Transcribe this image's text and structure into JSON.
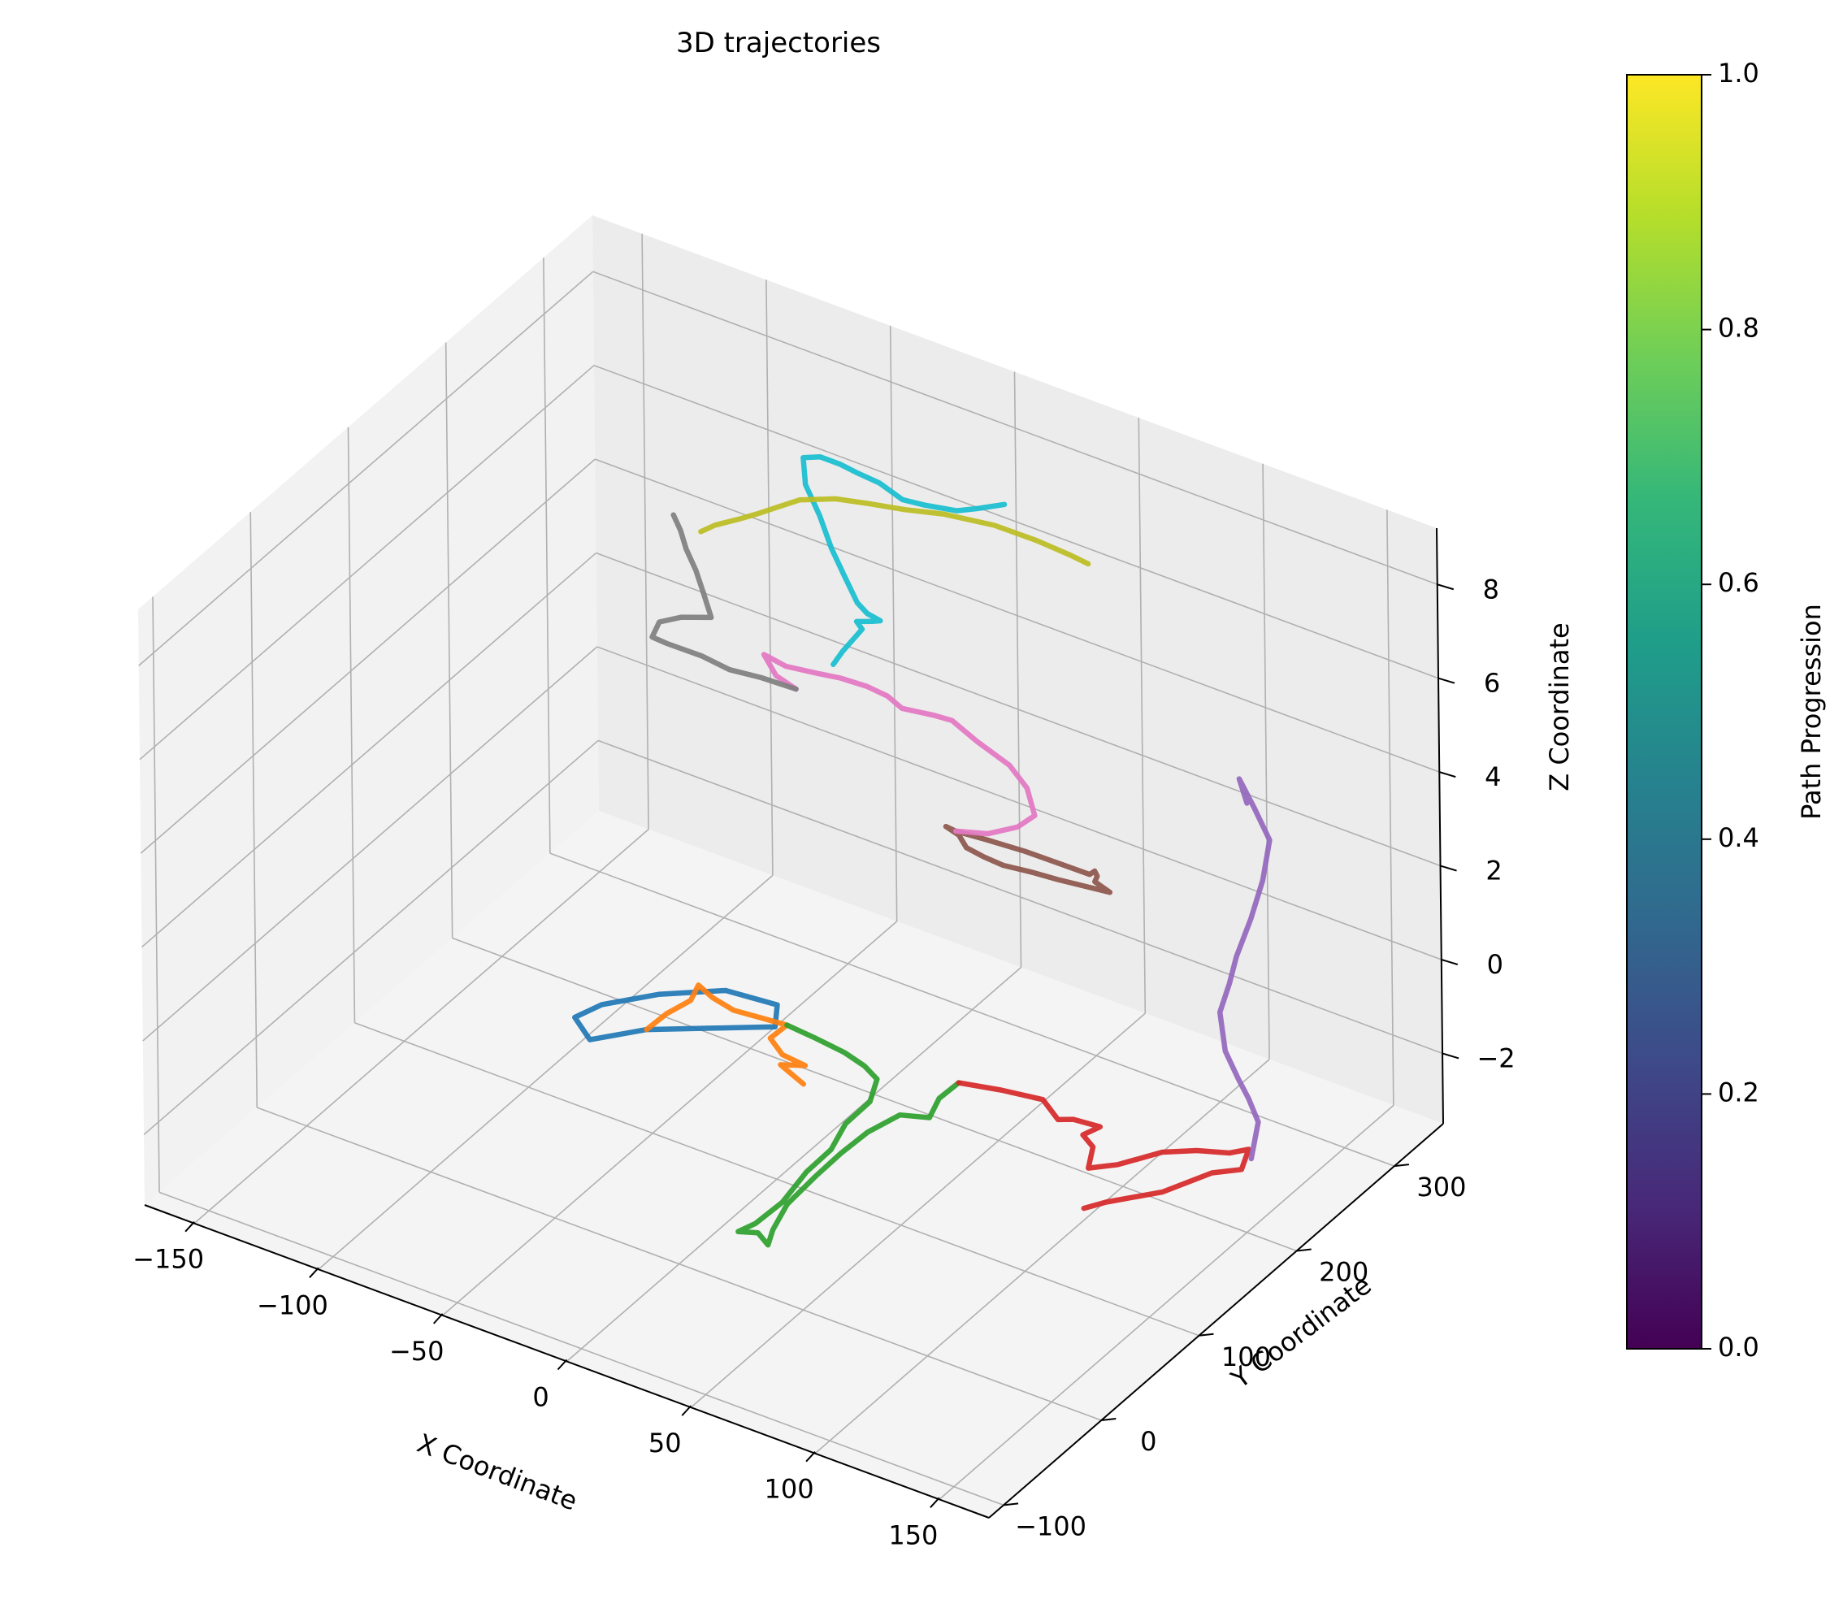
{
  "chart_data": {
    "type": "line",
    "projection": "3d",
    "title": "3D trajectories",
    "xlabel": "X Coordinate",
    "ylabel": "Y Coordinate",
    "zlabel": "Z Coordinate",
    "xlim": [
      -170,
      170
    ],
    "ylim": [
      -115,
      350
    ],
    "zlim": [
      -3.5,
      9.2
    ],
    "x_ticks": [
      -150,
      -100,
      -50,
      0,
      50,
      100,
      150
    ],
    "x_tick_labels": [
      "−150",
      "−100",
      "−50",
      "0",
      "50",
      "100",
      "150"
    ],
    "y_ticks": [
      -100,
      0,
      100,
      200,
      300
    ],
    "y_tick_labels": [
      "−100",
      "0",
      "100",
      "200",
      "300"
    ],
    "z_ticks": [
      -2,
      0,
      2,
      4,
      6,
      8
    ],
    "z_tick_labels": [
      "−2",
      "0",
      "2",
      "4",
      "6",
      "8"
    ],
    "grid": true,
    "colorbar": {
      "label": "Path Progression",
      "colormap": "viridis",
      "range": [
        0,
        1
      ],
      "ticks": [
        "0.0",
        "0.2",
        "0.4",
        "0.6",
        "0.8",
        "1.0"
      ],
      "colors": [
        "#440154",
        "#482878",
        "#3e4989",
        "#31688e",
        "#26828e",
        "#1f9e89",
        "#35b779",
        "#6ece58",
        "#b5de2b",
        "#fde725"
      ]
    },
    "series": [
      {
        "color": "#1f77b4",
        "points": [
          [
            -50,
            95,
            -1.2
          ],
          [
            -30,
            110,
            -1.05
          ],
          [
            -10,
            125,
            -0.9
          ],
          [
            -15,
            140,
            -0.8
          ],
          [
            -35,
            138,
            -0.85
          ],
          [
            -55,
            120,
            -1.0
          ],
          [
            -70,
            100,
            -1.15
          ],
          [
            -75,
            85,
            -1.25
          ],
          [
            -65,
            75,
            -1.35
          ],
          [
            -50,
            95,
            -1.2
          ]
        ]
      },
      {
        "color": "#ff7f0e",
        "points": [
          [
            -50,
            95,
            -1.2
          ],
          [
            -48,
            110,
            -1.1
          ],
          [
            -44,
            125,
            -1.0
          ],
          [
            -46,
            138,
            -0.95
          ],
          [
            -38,
            132,
            -0.95
          ],
          [
            -28,
            128,
            -0.95
          ],
          [
            -18,
            130,
            -0.95
          ],
          [
            -8,
            132,
            -0.95
          ],
          [
            -10,
            120,
            -1.05
          ],
          [
            -2,
            112,
            -1.1
          ],
          [
            8,
            110,
            -1.1
          ],
          [
            0,
            105,
            -1.15
          ],
          [
            12,
            98,
            -1.2
          ]
        ]
      },
      {
        "color": "#2ca02c",
        "points": [
          [
            -8,
            132,
            -0.95
          ],
          [
            5,
            128,
            -0.9
          ],
          [
            18,
            125,
            -0.9
          ],
          [
            28,
            120,
            -0.9
          ],
          [
            35,
            115,
            -0.95
          ],
          [
            38,
            100,
            -1.1
          ],
          [
            36,
            80,
            -1.25
          ],
          [
            38,
            60,
            -1.4
          ],
          [
            36,
            40,
            -1.55
          ],
          [
            36,
            15,
            -1.75
          ],
          [
            33,
            -5,
            -1.9
          ],
          [
            30,
            -15,
            -1.95
          ],
          [
            36,
            -10,
            -1.95
          ],
          [
            42,
            -15,
            -2.0
          ],
          [
            40,
            -5,
            -1.9
          ],
          [
            38,
            15,
            -1.75
          ],
          [
            40,
            40,
            -1.55
          ],
          [
            42,
            60,
            -1.4
          ],
          [
            45,
            80,
            -1.25
          ],
          [
            50,
            100,
            -1.15
          ],
          [
            60,
            105,
            -1.1
          ],
          [
            58,
            120,
            -1.0
          ],
          [
            60,
            135,
            -0.9
          ]
        ]
      },
      {
        "color": "#d62728",
        "points": [
          [
            60,
            135,
            -0.9
          ],
          [
            75,
            140,
            -0.85
          ],
          [
            90,
            145,
            -0.85
          ],
          [
            100,
            135,
            -0.9
          ],
          [
            105,
            138,
            -0.85
          ],
          [
            115,
            140,
            -0.85
          ],
          [
            112,
            130,
            -0.9
          ],
          [
            118,
            125,
            -0.95
          ],
          [
            122,
            110,
            -1.05
          ],
          [
            130,
            120,
            -1.0
          ],
          [
            140,
            140,
            -0.9
          ],
          [
            150,
            150,
            -0.85
          ],
          [
            160,
            158,
            -0.85
          ],
          [
            165,
            165,
            -0.8
          ],
          [
            168,
            150,
            -0.9
          ],
          [
            160,
            140,
            -0.95
          ],
          [
            150,
            115,
            -1.1
          ],
          [
            135,
            95,
            -1.25
          ],
          [
            130,
            85,
            -1.3
          ]
        ]
      },
      {
        "color": "#9467bd",
        "points": [
          [
            168,
            160,
            -0.85
          ],
          [
            165,
            175,
            -0.4
          ],
          [
            160,
            178,
            -0.05
          ],
          [
            155,
            180,
            0.25
          ],
          [
            148,
            185,
            0.6
          ],
          [
            140,
            200,
            1.0
          ],
          [
            138,
            215,
            1.3
          ],
          [
            135,
            230,
            1.55
          ],
          [
            133,
            250,
            1.95
          ],
          [
            130,
            270,
            2.35
          ],
          [
            125,
            290,
            2.75
          ],
          [
            115,
            300,
            3.05
          ],
          [
            105,
            310,
            3.3
          ],
          [
            112,
            300,
            3.1
          ]
        ]
      },
      {
        "color": "#8c564b",
        "points": [
          [
            80,
            220,
            2.4
          ],
          [
            72,
            212,
            2.6
          ],
          [
            62,
            200,
            2.9
          ],
          [
            50,
            190,
            3.1
          ],
          [
            42,
            180,
            3.3
          ],
          [
            40,
            175,
            3.45
          ],
          [
            48,
            168,
            3.55
          ],
          [
            55,
            158,
            3.6
          ],
          [
            65,
            150,
            3.75
          ],
          [
            75,
            145,
            3.85
          ],
          [
            85,
            148,
            3.85
          ],
          [
            95,
            150,
            3.85
          ],
          [
            105,
            155,
            3.8
          ],
          [
            110,
            165,
            3.6
          ],
          [
            100,
            175,
            3.45
          ],
          [
            95,
            190,
            3.2
          ],
          [
            88,
            205,
            2.9
          ],
          [
            80,
            220,
            2.4
          ]
        ]
      },
      {
        "color": "#e377c2",
        "points": [
          [
            42,
            180,
            3.3
          ],
          [
            55,
            180,
            3.5
          ],
          [
            65,
            185,
            3.75
          ],
          [
            70,
            190,
            4.0
          ],
          [
            65,
            195,
            4.4
          ],
          [
            58,
            195,
            4.75
          ],
          [
            45,
            195,
            5.0
          ],
          [
            35,
            195,
            5.25
          ],
          [
            30,
            190,
            5.35
          ],
          [
            20,
            182,
            5.45
          ],
          [
            15,
            180,
            5.65
          ],
          [
            10,
            172,
            5.9
          ],
          [
            2,
            165,
            6.05
          ],
          [
            -5,
            160,
            6.1
          ],
          [
            -18,
            160,
            6.0
          ],
          [
            -28,
            163,
            6.0
          ],
          [
            -20,
            155,
            5.85
          ],
          [
            -10,
            150,
            5.85
          ]
        ]
      },
      {
        "color": "#7f7f7f",
        "points": [
          [
            -10,
            150,
            5.85
          ],
          [
            -22,
            145,
            5.95
          ],
          [
            -32,
            138,
            6.05
          ],
          [
            -42,
            135,
            6.2
          ],
          [
            -52,
            125,
            6.45
          ],
          [
            -56,
            120,
            6.6
          ],
          [
            -55,
            125,
            6.85
          ],
          [
            -48,
            130,
            7.0
          ],
          [
            -38,
            135,
            7.1
          ],
          [
            -45,
            145,
            7.3
          ],
          [
            -50,
            150,
            7.6
          ],
          [
            -55,
            153,
            7.9
          ],
          [
            -58,
            155,
            8.2
          ],
          [
            -62,
            158,
            8.4
          ]
        ]
      },
      {
        "color": "#17becf",
        "points": [
          [
            -6,
            178,
            5.95
          ],
          [
            -3,
            180,
            6.25
          ],
          [
            0,
            183,
            6.5
          ],
          [
            3,
            185,
            6.75
          ],
          [
            2,
            182,
            6.95
          ],
          [
            8,
            183,
            7.05
          ],
          [
            10,
            186,
            7.05
          ],
          [
            4,
            188,
            7.05
          ],
          [
            0,
            188,
            7.2
          ],
          [
            -8,
            195,
            7.5
          ],
          [
            -15,
            200,
            7.85
          ],
          [
            -22,
            206,
            8.3
          ],
          [
            -30,
            212,
            8.7
          ],
          [
            -34,
            220,
            9.05
          ],
          [
            -28,
            222,
            9.15
          ],
          [
            -20,
            222,
            9.15
          ],
          [
            -15,
            226,
            9.0
          ],
          [
            -8,
            232,
            8.8
          ],
          [
            0,
            235,
            8.55
          ],
          [
            5,
            245,
            8.35
          ],
          [
            15,
            252,
            8.3
          ],
          [
            20,
            260,
            8.3
          ],
          [
            28,
            268,
            8.4
          ]
        ]
      },
      {
        "color": "#bcbd22",
        "points": [
          [
            -55,
            168,
            8.0
          ],
          [
            -50,
            170,
            8.2
          ],
          [
            -42,
            175,
            8.4
          ],
          [
            -36,
            180,
            8.55
          ],
          [
            -30,
            182,
            8.75
          ],
          [
            -22,
            186,
            9.0
          ],
          [
            -10,
            192,
            9.15
          ],
          [
            0,
            200,
            9.1
          ],
          [
            10,
            212,
            8.95
          ],
          [
            20,
            226,
            8.8
          ],
          [
            35,
            240,
            8.6
          ],
          [
            48,
            250,
            8.35
          ],
          [
            58,
            258,
            8.1
          ],
          [
            64,
            262,
            7.95
          ]
        ]
      }
    ]
  }
}
